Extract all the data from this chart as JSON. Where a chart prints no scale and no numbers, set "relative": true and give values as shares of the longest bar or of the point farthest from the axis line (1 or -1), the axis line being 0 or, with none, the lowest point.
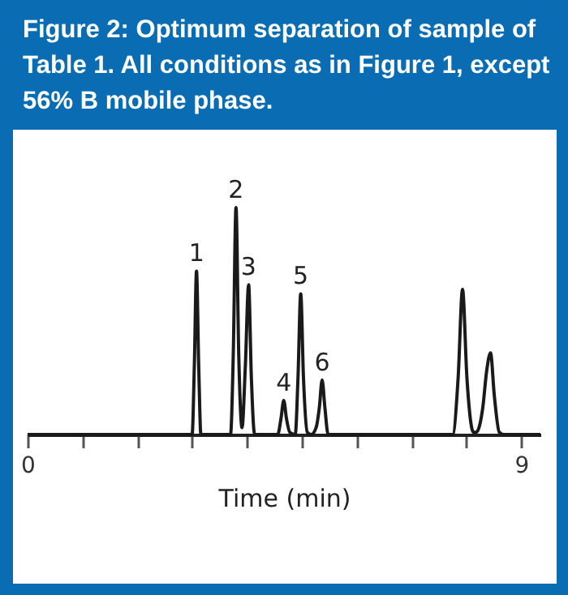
{
  "chart_data": {
    "type": "line",
    "title": "Figure 2: Optimum separation of sample of Table 1. All conditions as in Figure 1, except 56% B mobile phase.",
    "xlabel": "Time (min)",
    "relative": true,
    "grid": false,
    "marker": "none",
    "line_style": "solid",
    "x": [
      0,
      3.0,
      3.04,
      3.08,
      3.12,
      3.16,
      3.7,
      3.75,
      3.8,
      3.85,
      3.91,
      3.97,
      4.03,
      4.08,
      4.14,
      4.56,
      4.62,
      4.67,
      4.72,
      4.78,
      4.88,
      4.93,
      4.98,
      5.03,
      5.1,
      5.17,
      5.26,
      5.32,
      5.37,
      5.42,
      5.48,
      7.75,
      7.85,
      7.93,
      8.01,
      8.13,
      8.18,
      8.3,
      8.37,
      8.44,
      8.51,
      8.6,
      8.68,
      9.35
    ],
    "series": [
      {
        "color": "#1a1a1a",
        "values": [
          0,
          0,
          0.3,
          0.72,
          0.3,
          0,
          0,
          0.35,
          1.0,
          0.35,
          0.03,
          0.3,
          0.66,
          0.25,
          0,
          0,
          0.07,
          0.15,
          0.07,
          0.01,
          0,
          0.25,
          0.62,
          0.25,
          0.01,
          0,
          0.03,
          0.12,
          0.24,
          0.12,
          0,
          0,
          0.25,
          0.64,
          0.25,
          0.01,
          0.01,
          0.12,
          0.28,
          0.36,
          0.17,
          0.01,
          0,
          0
        ]
      }
    ],
    "xlim": [
      0,
      9.35
    ],
    "xticks": [
      0,
      {
        "value": 1,
        "label": null
      },
      {
        "value": 2,
        "label": null
      },
      {
        "value": 3,
        "label": null
      },
      {
        "value": 4,
        "label": null
      },
      {
        "value": 5,
        "label": null
      },
      {
        "value": 6,
        "label": null
      },
      {
        "value": 7,
        "label": null
      },
      {
        "value": 8,
        "label": null
      },
      9
    ],
    "annotations": [
      {
        "text": "1",
        "x": 3.08,
        "y": 0.72
      },
      {
        "text": "2",
        "x": 3.8,
        "y": 1.0
      },
      {
        "text": "3",
        "x": 4.03,
        "y": 0.66
      },
      {
        "text": "4",
        "x": 4.67,
        "y": 0.15
      },
      {
        "text": "5",
        "x": 4.98,
        "y": 0.62
      },
      {
        "text": "6",
        "x": 5.37,
        "y": 0.24
      }
    ]
  }
}
